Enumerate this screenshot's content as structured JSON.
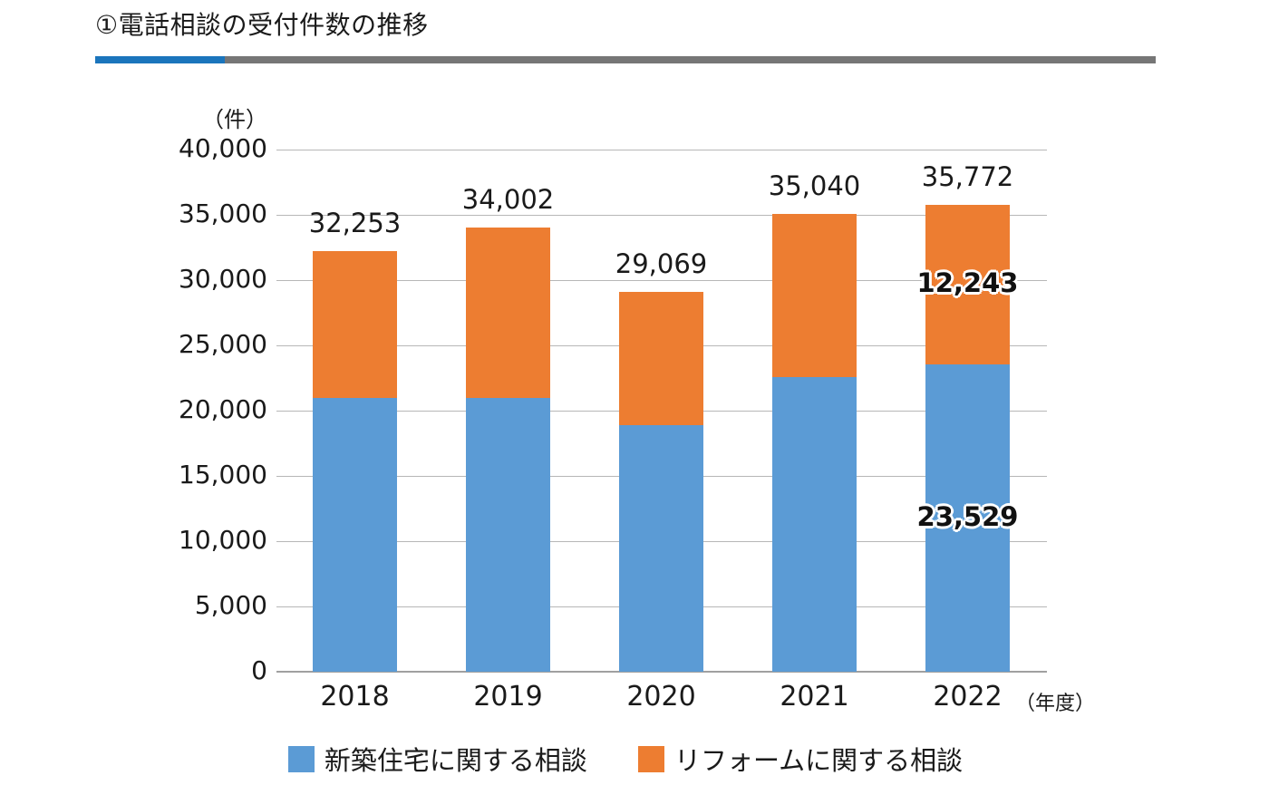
{
  "title": "①電話相談の受付件数の推移",
  "colors": {
    "accent_blue": "#1B75BC",
    "accent_gray": "#767676",
    "series_new": "#5B9BD5",
    "series_reform": "#ED7D31"
  },
  "chart_data": {
    "type": "bar",
    "stacked": true,
    "title": "①電話相談の受付件数の推移",
    "unit_label": "（件）",
    "axis_suffix": "（年度）",
    "categories": [
      "2018",
      "2019",
      "2020",
      "2021",
      "2022"
    ],
    "series": [
      {
        "name": "新築住宅に関する相談",
        "color": "#5B9BD5",
        "values": [
          21000,
          20950,
          18900,
          22550,
          23529
        ]
      },
      {
        "name": "リフォームに関する相談",
        "color": "#ED7D31",
        "values": [
          11253,
          13052,
          10169,
          12490,
          12243
        ]
      }
    ],
    "totals_text": [
      "32,253",
      "34,002",
      "29,069",
      "35,040",
      "35,772"
    ],
    "totals": [
      32253,
      34002,
      29069,
      35040,
      35772
    ],
    "segment_labels": [
      {
        "category": "2022",
        "series_index": 0,
        "text": "23,529",
        "value": 23529
      },
      {
        "category": "2022",
        "series_index": 1,
        "text": "12,243",
        "value": 12243
      }
    ],
    "ylim": [
      0,
      40000
    ],
    "ytick_step": 5000,
    "yticks": [
      "0",
      "5,000",
      "10,000",
      "15,000",
      "20,000",
      "25,000",
      "30,000",
      "35,000",
      "40,000"
    ],
    "grid": true,
    "legend_position": "bottom"
  }
}
